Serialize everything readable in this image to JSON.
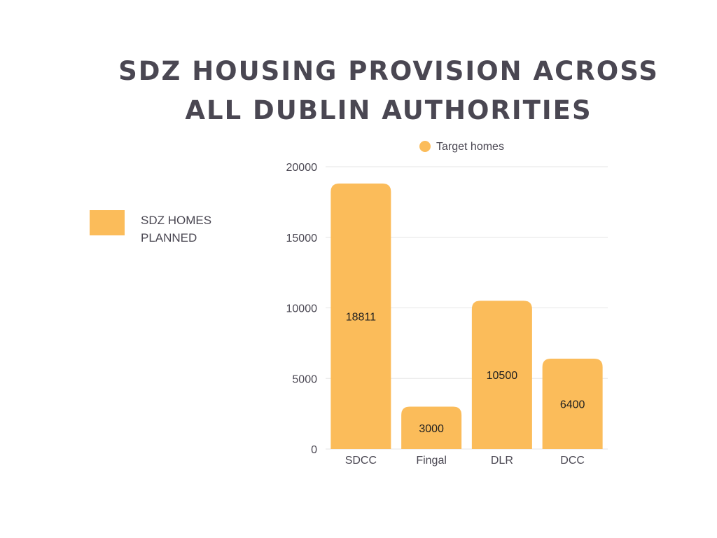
{
  "chart_data": {
    "type": "bar",
    "title": "SDZ HOUSING PROVISION ACROSS ALL DUBLIN AUTHORITIES",
    "categories": [
      "SDCC",
      "Fingal",
      "DLR",
      "DCC"
    ],
    "series": [
      {
        "name": "Target homes",
        "values": [
          18811,
          3000,
          10500,
          6400
        ]
      }
    ],
    "data_labels": [
      "18811",
      "3000",
      "10500",
      "6400"
    ],
    "y_ticks": [
      "0",
      "5000",
      "10000",
      "15000",
      "20000"
    ],
    "ylim": [
      0,
      20000
    ],
    "xlabel": "",
    "ylabel": "",
    "grid": true,
    "legend_position": "top"
  },
  "side_legend": {
    "label": "SDZ HOMES PLANNED"
  },
  "colors": {
    "bar": "#FBBC5A",
    "text": "#4A4752",
    "grid": "#E6E6E6"
  }
}
